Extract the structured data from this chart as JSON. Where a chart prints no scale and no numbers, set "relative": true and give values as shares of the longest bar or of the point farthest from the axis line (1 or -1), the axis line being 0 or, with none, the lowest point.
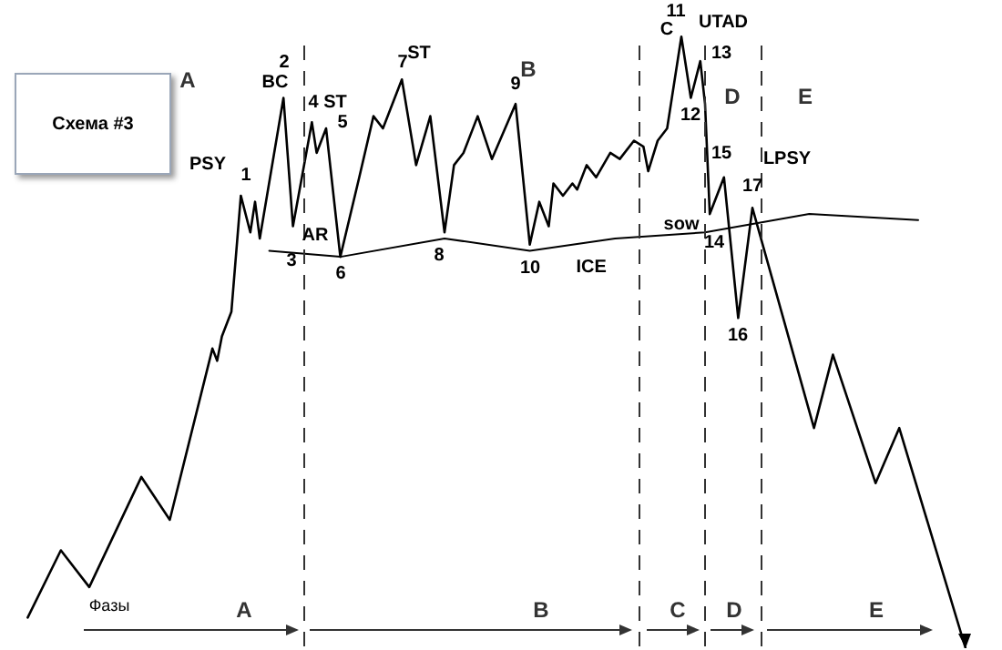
{
  "chart_data": {
    "type": "line",
    "title": "Схема #3",
    "relative": true,
    "legend": false,
    "marker": "none",
    "line_style": "solid",
    "categories": [
      null,
      null,
      null,
      null,
      null,
      null,
      null,
      null,
      null,
      null,
      null,
      null,
      null,
      null,
      null,
      null,
      null,
      null,
      null,
      null,
      null,
      null,
      null,
      null,
      null,
      null,
      null,
      null,
      null,
      null,
      null,
      null,
      null,
      null,
      null,
      null,
      null,
      null,
      null,
      null,
      null,
      null,
      null,
      null,
      null,
      null,
      null,
      null,
      null,
      null,
      null,
      null,
      null,
      null,
      null,
      null,
      null,
      null,
      null,
      null,
      null,
      null,
      null,
      null,
      null,
      null,
      null,
      null,
      null,
      null,
      null,
      null,
      null,
      null,
      null,
      null,
      null,
      null,
      null,
      null,
      null,
      null,
      null,
      null,
      null,
      null,
      null,
      null,
      null,
      null,
      null,
      null,
      null,
      null,
      null,
      null,
      null,
      null,
      null,
      null,
      null,
      null,
      null,
      null,
      null,
      null,
      null,
      null,
      null,
      null,
      null,
      null,
      null,
      null,
      null,
      null,
      null,
      null,
      null,
      null,
      null,
      null,
      null,
      null,
      null,
      null,
      null,
      null,
      null,
      null,
      null,
      null,
      null,
      null,
      null,
      null,
      null,
      null,
      null,
      null,
      null,
      null,
      null,
      null,
      null,
      null,
      null,
      null,
      null,
      null,
      null,
      null,
      null,
      null,
      null,
      null,
      null,
      null,
      null,
      null,
      null,
      null,
      null,
      null,
      null,
      null,
      null,
      null,
      null,
      null,
      null,
      null,
      null,
      null,
      null,
      null,
      null,
      null,
      null,
      null,
      null,
      null,
      null,
      null,
      null,
      null,
      null,
      null,
      null,
      null,
      null,
      null,
      null,
      null,
      null,
      null,
      null,
      null,
      null,
      null,
      null
    ],
    "series": [
      {
        "color": "#000000",
        "values": [
          null,
          null,
          0.05,
          null,
          null,
          null,
          null,
          null,
          null,
          0.16,
          null,
          null,
          null,
          null,
          null,
          0.1,
          null,
          null,
          null,
          null,
          null,
          null,
          null,
          null,
          null,
          null,
          0.28,
          null,
          null,
          null,
          null,
          null,
          0.21,
          null,
          null,
          null,
          null,
          null,
          null,
          null,
          null,
          0.49,
          0.47,
          0.51,
          null,
          0.55,
          null,
          0.74,
          null,
          0.68,
          0.73,
          0.67,
          null,
          null,
          null,
          null,
          0.9,
          null,
          0.69,
          null,
          null,
          null,
          0.86,
          0.81,
          null,
          0.85,
          null,
          null,
          0.64,
          null,
          null,
          null,
          0.77,
          null,
          null,
          0.87,
          null,
          0.85,
          null,
          null,
          null,
          0.93,
          null,
          null,
          0.79,
          null,
          null,
          0.87,
          null,
          null,
          0.68,
          null,
          0.79,
          null,
          0.81,
          null,
          null,
          0.87,
          null,
          null,
          0.8,
          null,
          null,
          null,
          null,
          0.89,
          null,
          null,
          0.66,
          null,
          0.73,
          null,
          0.69,
          0.76,
          null,
          0.74,
          null,
          0.76,
          0.75,
          null,
          0.79,
          null,
          0.77,
          null,
          null,
          0.81,
          null,
          0.8,
          null,
          null,
          0.83,
          null,
          0.82,
          0.78,
          null,
          0.83,
          0.84,
          0.85,
          null,
          null,
          1.0,
          null,
          0.9,
          null,
          0.96,
          0.89,
          0.71,
          null,
          null,
          0.77,
          null,
          null,
          0.54,
          null,
          null,
          0.72,
          null,
          null,
          null,
          null,
          null,
          null,
          null,
          null,
          null,
          null,
          null,
          null,
          0.36,
          null,
          null,
          null,
          0.48,
          null,
          null,
          null,
          null,
          null,
          null,
          null,
          null,
          0.27,
          null,
          null,
          null,
          null,
          0.36,
          null,
          null,
          null,
          null,
          null,
          null,
          null,
          null,
          null,
          null,
          null,
          null,
          null,
          0
        ]
      },
      {
        "name": "ICE",
        "color": "#000000",
        "values": [
          null,
          null,
          null,
          null,
          null,
          null,
          null,
          null,
          null,
          null,
          null,
          null,
          null,
          null,
          null,
          null,
          null,
          null,
          null,
          null,
          null,
          null,
          null,
          null,
          null,
          null,
          null,
          null,
          null,
          null,
          null,
          null,
          null,
          null,
          null,
          null,
          null,
          null,
          null,
          null,
          null,
          null,
          null,
          null,
          null,
          null,
          null,
          null,
          null,
          null,
          null,
          null,
          null,
          0.65,
          null,
          null,
          null,
          null,
          null,
          null,
          null,
          null,
          null,
          null,
          null,
          null,
          null,
          null,
          0.64,
          null,
          null,
          null,
          null,
          null,
          null,
          null,
          null,
          null,
          null,
          null,
          null,
          null,
          null,
          null,
          null,
          null,
          null,
          null,
          null,
          null,
          0.67,
          null,
          null,
          null,
          null,
          null,
          null,
          null,
          null,
          null,
          null,
          null,
          null,
          null,
          null,
          null,
          null,
          null,
          0.65,
          null,
          null,
          null,
          null,
          null,
          null,
          null,
          null,
          null,
          null,
          null,
          null,
          null,
          null,
          null,
          null,
          null,
          0.67,
          null,
          null,
          null,
          null,
          null,
          null,
          null,
          null,
          null,
          null,
          null,
          null,
          null,
          null,
          null,
          null,
          null,
          null,
          0.68,
          null,
          null,
          null,
          null,
          null,
          null,
          null,
          null,
          null,
          null,
          null,
          null,
          null,
          null,
          null,
          null,
          null,
          null,
          null,
          null,
          null,
          0.71,
          null,
          null,
          null,
          null,
          null,
          null,
          null,
          null,
          null,
          null,
          null,
          null,
          null,
          null,
          null,
          null,
          null,
          null,
          null,
          null,
          null,
          null,
          0.7,
          null,
          null,
          null,
          null,
          null,
          null,
          null,
          null,
          null,
          null
        ]
      }
    ],
    "annotations": [
      "PSY",
      "1",
      "2",
      "BC",
      "AR",
      "3",
      "4",
      "ST",
      "5",
      "6",
      "7",
      "ST",
      "8",
      "9",
      "10",
      "11",
      "C",
      "UTAD",
      "12",
      "13",
      "sow",
      "14",
      "15",
      "LPSY",
      "16",
      "17",
      "A",
      "B",
      "D",
      "E",
      "Фазы",
      "A",
      "B",
      "C",
      "D",
      "E"
    ]
  }
}
